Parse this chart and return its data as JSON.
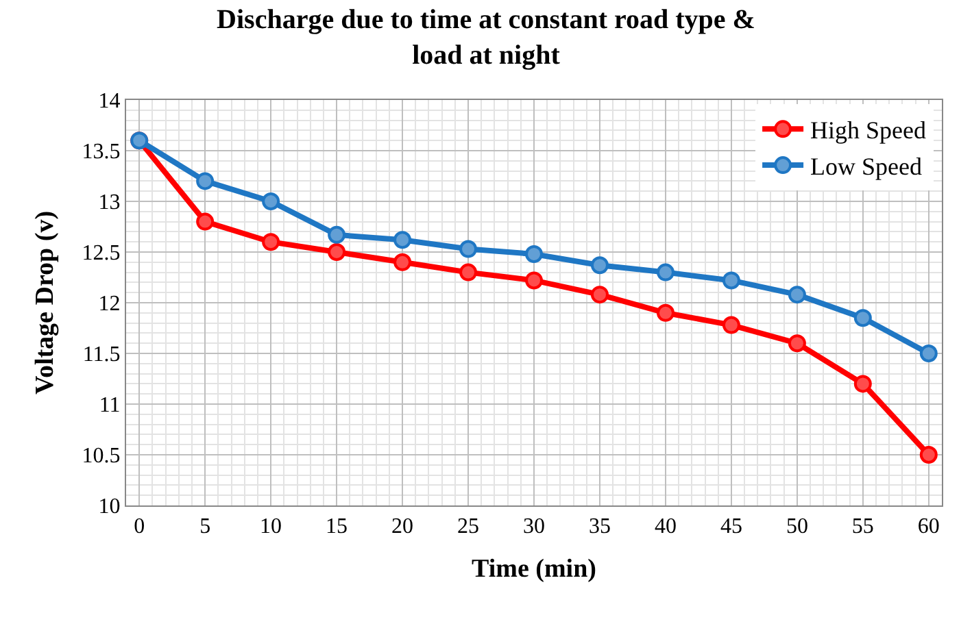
{
  "chart_data": {
    "type": "line",
    "title": "Discharge due to time at constant road type &\nload at night",
    "xlabel": "Time (min)",
    "ylabel": "Voltage Drop (v)",
    "x": [
      0,
      5,
      10,
      15,
      20,
      25,
      30,
      35,
      40,
      45,
      50,
      55,
      60
    ],
    "series": [
      {
        "name": "High Speed",
        "color": "#ff0000",
        "marker": "circle",
        "values": [
          13.6,
          12.8,
          12.6,
          12.5,
          12.4,
          12.3,
          12.22,
          12.08,
          11.9,
          11.78,
          11.6,
          11.2,
          10.5
        ]
      },
      {
        "name": "Low Speed",
        "color": "#1f77c4",
        "marker": "circle",
        "values": [
          13.6,
          13.2,
          13.0,
          12.67,
          12.62,
          12.53,
          12.48,
          12.37,
          12.3,
          12.22,
          12.08,
          11.85,
          11.5
        ]
      }
    ],
    "xlim": [
      -1,
      61
    ],
    "xticks": [
      0,
      5,
      10,
      15,
      20,
      25,
      30,
      35,
      40,
      45,
      50,
      55,
      60
    ],
    "ylim": [
      10,
      14
    ],
    "yticks": [
      10,
      10.5,
      11,
      11.5,
      12,
      12.5,
      13,
      13.5,
      14
    ],
    "grid": true,
    "legend": "top right"
  }
}
